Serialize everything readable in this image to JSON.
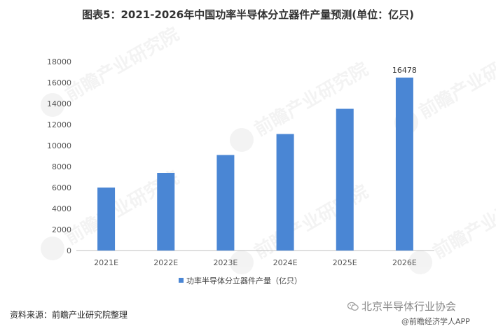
{
  "title": "图表5：2021-2026年中国功率半导体分立器件产量预测(单位：亿只)",
  "source": "资料来源：前瞻产业研究院整理",
  "watermark": "前瞻产业研究院",
  "wechat_account": "北京半导体行业协会",
  "app_label": "@前瞻经济学人APP",
  "chart_data": {
    "type": "bar",
    "categories": [
      "2021E",
      "2022E",
      "2023E",
      "2024E",
      "2025E",
      "2026E"
    ],
    "series": [
      {
        "name": "功率半导体分立器件产量（亿只）",
        "values": [
          6000,
          7400,
          9100,
          11100,
          13500,
          16478
        ],
        "color": "#4a86d4"
      }
    ],
    "data_labels": {
      "2026E": "16478"
    },
    "ylim": [
      0,
      18000
    ],
    "yticks": [
      0,
      2000,
      4000,
      6000,
      8000,
      10000,
      12000,
      14000,
      16000,
      18000
    ],
    "grid": false,
    "legend_position": "bottom-center"
  }
}
